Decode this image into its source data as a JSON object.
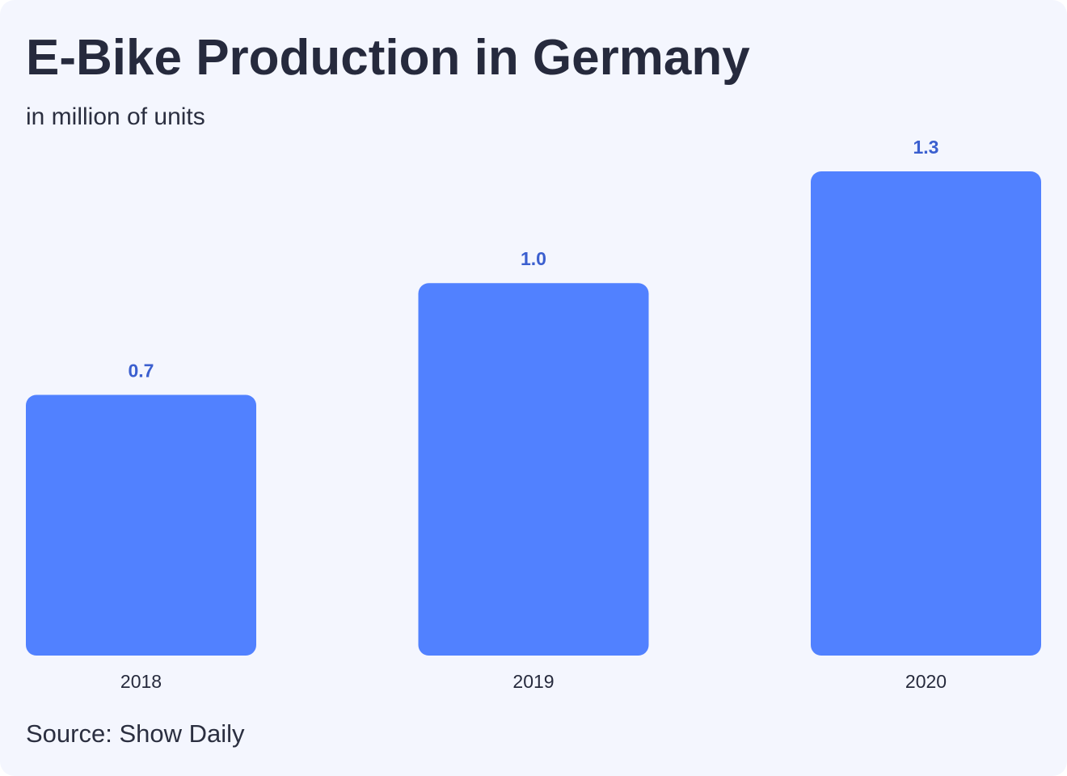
{
  "header": {
    "title": "E-Bike Production in Germany",
    "subtitle": "in million of units"
  },
  "footer": {
    "source": "Source: Show Daily"
  },
  "colors": {
    "bar": "#5181ff",
    "value_label": "#3b5fcf",
    "background": "#f4f6fe"
  },
  "chart_data": {
    "type": "bar",
    "categories": [
      "2018",
      "2019",
      "2020"
    ],
    "values": [
      0.7,
      1.0,
      1.3
    ],
    "value_labels": [
      "0.7",
      "1.0",
      "1.3"
    ],
    "title": "E-Bike Production in Germany",
    "subtitle": "in million of units",
    "xlabel": "",
    "ylabel": "",
    "ylim": [
      0,
      1.3
    ],
    "grid": false,
    "legend": "none"
  }
}
